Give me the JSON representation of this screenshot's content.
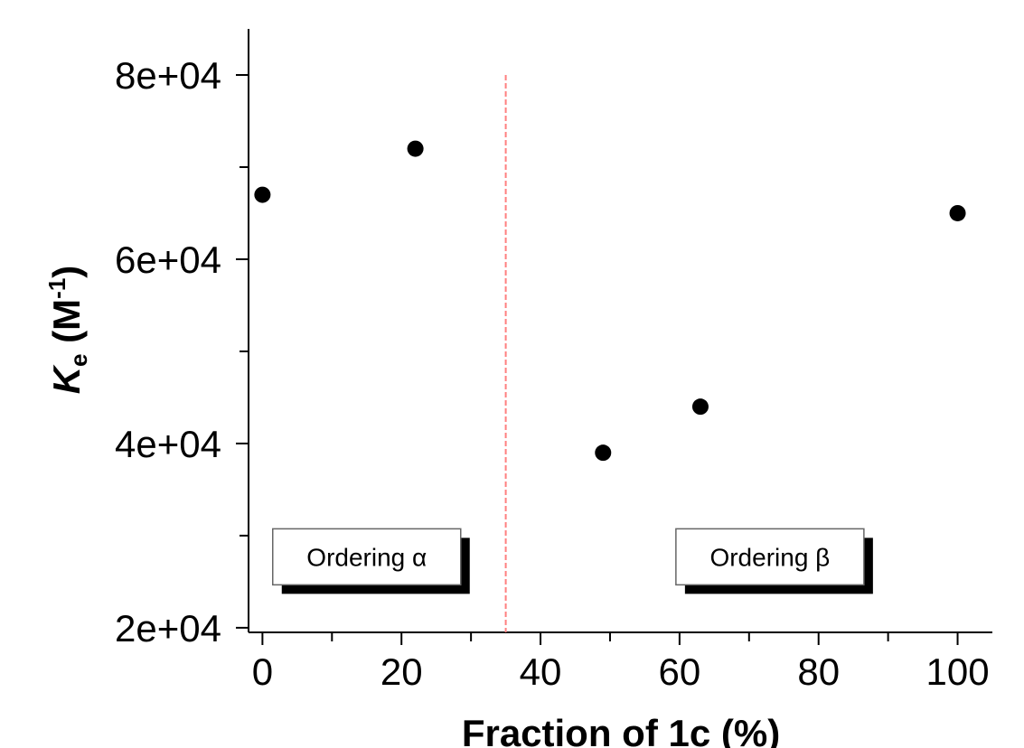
{
  "chart_data": {
    "type": "scatter",
    "xlabel": "Fraction of 1c (%)",
    "ylabel": {
      "main": "K",
      "sub": "e",
      "unit_open": " (M",
      "unit_sup": "-1",
      "unit_close": ")"
    },
    "xlim": [
      -2,
      105
    ],
    "ylim": [
      19500,
      85000
    ],
    "x_ticks": [
      0,
      20,
      40,
      60,
      80,
      100
    ],
    "x_minor_ticks": [
      10,
      30,
      50,
      70,
      90
    ],
    "y_ticks": [
      20000,
      40000,
      60000,
      80000
    ],
    "y_tick_labels": [
      "2e+04",
      "4e+04",
      "6e+04",
      "8e+04"
    ],
    "y_minor_ticks": [
      30000,
      50000,
      70000
    ],
    "x": [
      0,
      22,
      49,
      63,
      100
    ],
    "y": [
      67000,
      72000,
      39000,
      44000,
      65000
    ],
    "marker_color": "#000000",
    "divider": {
      "x": 35,
      "color": "#ff8080",
      "style": "dashed"
    },
    "annotations": [
      {
        "text": "Ordering α",
        "x": 15,
        "y": 27700
      },
      {
        "text": "Ordering β",
        "x": 73,
        "y": 27700
      }
    ],
    "grid": false
  }
}
